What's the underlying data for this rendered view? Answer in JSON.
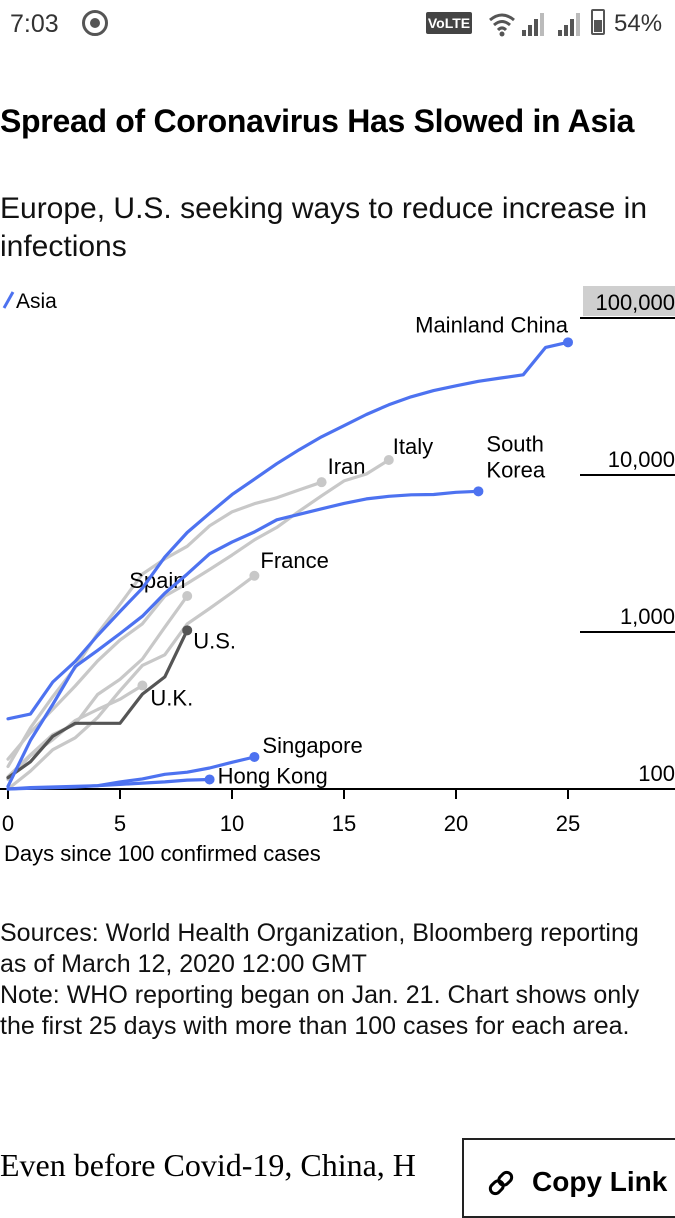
{
  "status": {
    "time": "7:03",
    "volte": "VoLTE",
    "battery": "54%"
  },
  "chart_data": {
    "type": "line",
    "title": "Spread of Coronavirus Has Slowed in Asia",
    "subtitle": "Europe, U.S. seeking ways to reduce increase in infections",
    "xlabel": "Days since 100 confirmed cases",
    "ylabel": "",
    "yscale": "log",
    "xlim": [
      0,
      29
    ],
    "ylim": [
      100,
      100000
    ],
    "x_ticks": [
      0,
      5,
      10,
      15,
      20,
      25
    ],
    "y_ticks": [
      100,
      1000,
      10000,
      100000
    ],
    "y_tick_labels": [
      "100",
      "1,000",
      "10,000",
      "100,000"
    ],
    "legend": {
      "label": "Asia",
      "color": "#4d72f0",
      "position": "top-left"
    },
    "series": [
      {
        "name": "Mainland China",
        "group": "asia",
        "color": "#4d72f0",
        "endpoint": true,
        "x": [
          0,
          1,
          2,
          3,
          4,
          5,
          6,
          7,
          8,
          9,
          10,
          11,
          12,
          13,
          14,
          15,
          16,
          17,
          18,
          19,
          20,
          21,
          22,
          23,
          24,
          25
        ],
        "y": [
          280,
          300,
          480,
          650,
          950,
          1350,
          1900,
          3000,
          4300,
          5700,
          7500,
          9400,
          11800,
          14500,
          17500,
          20600,
          24300,
          28000,
          31500,
          34500,
          37000,
          39500,
          41500,
          43500,
          65000,
          70000
        ]
      },
      {
        "name": "South Korea",
        "group": "asia",
        "color": "#4d72f0",
        "endpoint": true,
        "x": [
          0,
          1,
          2,
          3,
          4,
          5,
          6,
          7,
          8,
          9,
          10,
          11,
          12,
          13,
          14,
          15,
          16,
          17,
          18,
          19,
          20,
          21
        ],
        "y": [
          104,
          204,
          346,
          602,
          763,
          977,
          1261,
          1766,
          2337,
          3150,
          3736,
          4335,
          5186,
          5621,
          6088,
          6593,
          7041,
          7313,
          7478,
          7513,
          7755,
          7869
        ]
      },
      {
        "name": "Singapore",
        "group": "asia",
        "color": "#4d72f0",
        "endpoint": true,
        "x": [
          0,
          1,
          2,
          3,
          4,
          5,
          6,
          7,
          8,
          9,
          10,
          11
        ],
        "y": [
          100,
          101,
          102,
          103,
          105,
          111,
          116,
          124,
          128,
          136,
          148,
          160
        ]
      },
      {
        "name": "Hong Kong",
        "group": "asia",
        "color": "#4d72f0",
        "endpoint": true,
        "x": [
          0,
          1,
          2,
          3,
          4,
          5,
          6,
          7,
          8,
          9
        ],
        "y": [
          100,
          102,
          103,
          104,
          105,
          107,
          109,
          111,
          114,
          115
        ]
      },
      {
        "name": "Iran",
        "group": "other",
        "color": "#c8c8c8",
        "endpoint": true,
        "x": [
          0,
          1,
          2,
          3,
          4,
          5,
          6,
          7,
          8,
          9,
          10,
          11,
          12,
          13,
          14
        ],
        "y": [
          139,
          245,
          388,
          593,
          978,
          1501,
          2336,
          2922,
          3513,
          4747,
          5823,
          6566,
          7161,
          8042,
          9000
        ]
      },
      {
        "name": "Italy",
        "group": "other",
        "color": "#c8c8c8",
        "endpoint": true,
        "x": [
          0,
          1,
          2,
          3,
          4,
          5,
          6,
          7,
          8,
          9,
          10,
          11,
          12,
          13,
          14,
          15,
          16,
          17
        ],
        "y": [
          155,
          229,
          322,
          453,
          655,
          888,
          1128,
          1694,
          2036,
          2502,
          3089,
          3858,
          4636,
          5883,
          7375,
          9172,
          10149,
          12462
        ]
      },
      {
        "name": "Spain",
        "group": "other",
        "color": "#c8c8c8",
        "endpoint": true,
        "x": [
          0,
          1,
          2,
          3,
          4,
          5,
          6,
          7,
          8
        ],
        "y": [
          120,
          165,
          222,
          259,
          400,
          500,
          673,
          1073,
          1695
        ]
      },
      {
        "name": "France",
        "group": "other",
        "color": "#c8c8c8",
        "endpoint": true,
        "x": [
          0,
          1,
          2,
          3,
          4,
          5,
          6,
          7,
          8,
          9,
          10,
          11
        ],
        "y": [
          100,
          130,
          178,
          212,
          285,
          423,
          613,
          716,
          1126,
          1412,
          1784,
          2281
        ]
      },
      {
        "name": "U.K.",
        "group": "other",
        "color": "#c8c8c8",
        "endpoint": true,
        "x": [
          0,
          1,
          2,
          3,
          4,
          5,
          6
        ],
        "y": [
          115,
          163,
          206,
          273,
          321,
          373,
          456
        ]
      },
      {
        "name": "U.S.",
        "group": "us",
        "color": "#555555",
        "endpoint": true,
        "x": [
          0,
          1,
          2,
          3,
          4,
          5,
          6,
          7,
          8
        ],
        "y": [
          118,
          149,
          217,
          262,
          262,
          262,
          402,
          518,
          1025
        ]
      }
    ]
  },
  "footer": {
    "sources": "Sources: World Health Organization, Bloomberg reporting as of March 12, 2020 12:00 GMT",
    "note": "Note: WHO reporting began on Jan. 21. Chart shows only the first 25 days with more than 100 cases for each area."
  },
  "article": {
    "text": "Even before Covid-19, China, H"
  },
  "copy_link": {
    "label": "Copy Link"
  }
}
